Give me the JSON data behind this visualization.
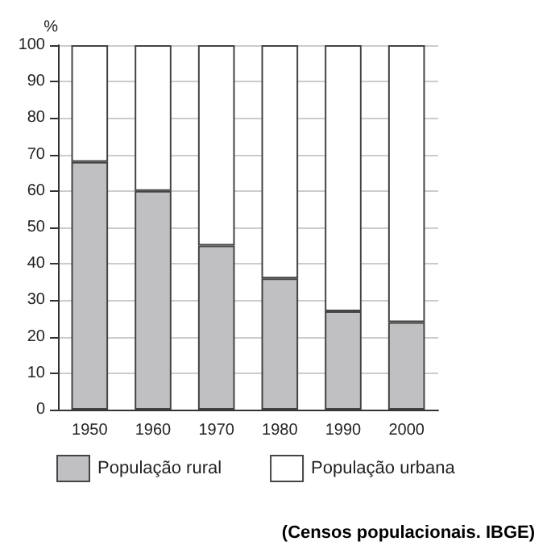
{
  "chart_data": {
    "type": "bar",
    "stacked": true,
    "ylabel": "%",
    "categories": [
      "1950",
      "1960",
      "1970",
      "1980",
      "1990",
      "2000"
    ],
    "series": [
      {
        "name": "População rural",
        "color": "#c0c0c2",
        "values": [
          68,
          60,
          45,
          36,
          27,
          24
        ]
      },
      {
        "name": "População urbana",
        "color": "#ffffff",
        "values": [
          32,
          40,
          55,
          64,
          73,
          76
        ]
      }
    ],
    "ylim": [
      0,
      100
    ],
    "yticks": [
      0,
      10,
      20,
      30,
      40,
      50,
      60,
      70,
      80,
      90,
      100
    ],
    "grid": "y",
    "legend": "bottom",
    "annotations": [
      "(Censos populacionais. IBGE)"
    ]
  }
}
